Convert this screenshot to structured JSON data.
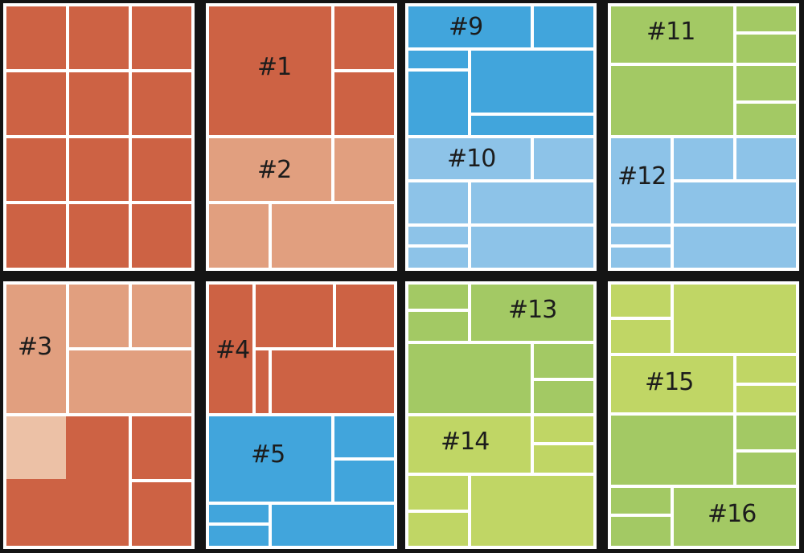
{
  "colors": {
    "red": "#CD6244",
    "light_red": "#E19F7F",
    "pale_red": "#ECC1A6",
    "blue": "#41A5DC",
    "light_blue": "#8DC3E8",
    "green": "#A3C964",
    "lime": "#C0D665",
    "frame": "#FFFFFF",
    "background": "#141414"
  },
  "labels": {
    "l1": "#1",
    "l2": "#2",
    "l3": "#3",
    "l4": "#4",
    "l5": "#5",
    "l9": "#9",
    "l10": "#10",
    "l11": "#11",
    "l12": "#12",
    "l13": "#13",
    "l14": "#14",
    "l15": "#15",
    "l16": "#16"
  }
}
